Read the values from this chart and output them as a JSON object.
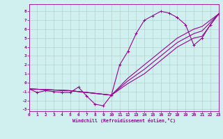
{
  "xlabel": "Windchill (Refroidissement éolien,°C)",
  "background_color": "#cff0ee",
  "grid_color": "#b0c8c8",
  "line_color": "#990099",
  "xlim": [
    0,
    23
  ],
  "ylim": [
    -3.2,
    8.8
  ],
  "xticks": [
    0,
    1,
    2,
    3,
    4,
    5,
    6,
    7,
    8,
    9,
    10,
    11,
    12,
    13,
    14,
    15,
    16,
    17,
    18,
    19,
    20,
    21,
    22,
    23
  ],
  "yticks": [
    -3,
    -2,
    -1,
    0,
    1,
    2,
    3,
    4,
    5,
    6,
    7,
    8
  ],
  "curve_main_x": [
    0,
    1,
    2,
    3,
    4,
    5,
    6,
    7,
    8,
    9,
    10,
    11,
    12,
    13,
    14,
    15,
    16,
    17,
    18,
    19,
    20,
    21,
    22,
    23
  ],
  "curve_main_y": [
    -0.7,
    -1.1,
    -0.9,
    -1.0,
    -1.1,
    -1.1,
    -0.5,
    -1.5,
    -2.4,
    -2.6,
    -1.4,
    2.0,
    3.5,
    5.5,
    7.0,
    7.5,
    8.0,
    7.8,
    7.3,
    6.5,
    4.2,
    5.0,
    6.5,
    7.7
  ],
  "line1_x": [
    0,
    10,
    23
  ],
  "line1_y": [
    -0.7,
    -1.4,
    7.7
  ],
  "line2_x": [
    0,
    10,
    23
  ],
  "line2_y": [
    -0.7,
    -1.4,
    7.7
  ],
  "line3_x": [
    0,
    10,
    23
  ],
  "line3_y": [
    -0.7,
    -1.4,
    7.7
  ],
  "diag1_x": [
    0,
    5,
    10,
    12,
    14,
    16,
    18,
    20,
    21,
    23
  ],
  "diag1_y": [
    -0.7,
    -0.9,
    -1.4,
    0.5,
    2.0,
    3.5,
    5.0,
    6.0,
    6.3,
    7.7
  ],
  "diag2_x": [
    0,
    5,
    10,
    12,
    14,
    16,
    18,
    20,
    21,
    23
  ],
  "diag2_y": [
    -0.7,
    -0.9,
    -1.4,
    0.2,
    1.5,
    3.0,
    4.5,
    5.5,
    5.8,
    7.7
  ],
  "diag3_x": [
    0,
    5,
    10,
    12,
    14,
    16,
    18,
    20,
    21,
    23
  ],
  "diag3_y": [
    -0.7,
    -0.9,
    -1.4,
    -0.1,
    1.0,
    2.5,
    4.0,
    5.0,
    5.2,
    7.7
  ]
}
